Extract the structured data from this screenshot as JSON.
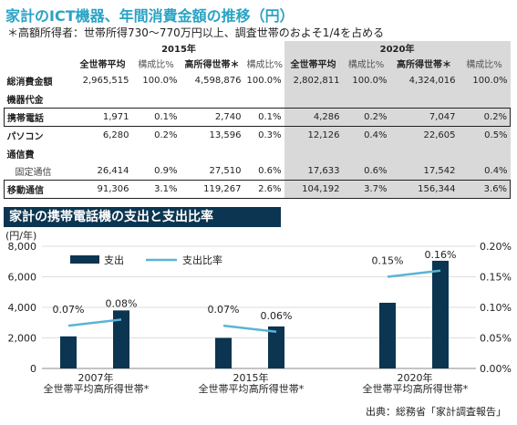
{
  "title": "家計のICT機器、年間消費金額の推移（円）",
  "note": "＊高額所得者：世帯所得730〜770万円以上、調査世帯のおよそ1/4を占める",
  "table": {
    "years": [
      "2015年",
      "2020年"
    ],
    "col_avg": "全世帯平均",
    "col_high": "高所得世帯＊",
    "col_ratio": "構成比%",
    "rows": [
      {
        "label": "総消費金額",
        "values": [
          "2,965,515",
          "100.0%",
          "4,598,876",
          "100.0%",
          "2,802,811",
          "100.0%",
          "4,324,016",
          "100.0%"
        ]
      },
      {
        "label": "機器代金"
      },
      {
        "label": "携帯電話",
        "values": [
          "1,971",
          "0.1%",
          "2,740",
          "0.1%",
          "4,286",
          "0.2%",
          "7,047",
          "0.2%"
        ]
      },
      {
        "label": "パソコン",
        "values": [
          "6,280",
          "0.2%",
          "13,596",
          "0.3%",
          "12,126",
          "0.4%",
          "22,605",
          "0.5%"
        ]
      },
      {
        "label": "通信費"
      },
      {
        "label": "固定通信",
        "values": [
          "26,414",
          "0.9%",
          "27,510",
          "0.6%",
          "17,633",
          "0.6%",
          "17,542",
          "0.4%"
        ]
      },
      {
        "label": "移動通信",
        "values": [
          "91,306",
          "3.1%",
          "119,267",
          "2.6%",
          "104,192",
          "3.7%",
          "156,344",
          "3.6%"
        ]
      }
    ]
  },
  "chart_title": "家計の携帯電話機の支出と支出比率",
  "source": "出典：総務省「家計調査報告」",
  "colors": {
    "bar": "#0b3550",
    "line": "#5ab4d6",
    "title": "#2aa3c5"
  },
  "chart_data": {
    "type": "bar",
    "unit_label": "(円/年)",
    "legend_bar": "支出",
    "legend_line": "支出比率",
    "legend_position": "top-left",
    "groups": [
      "2007年",
      "2015年",
      "2020年"
    ],
    "categories": [
      "全世帯平均",
      "高所得世帯*"
    ],
    "bars": [
      [
        2100,
        3800
      ],
      [
        2000,
        2750
      ],
      [
        4300,
        7050
      ]
    ],
    "ratios": [
      [
        0.0007,
        0.0008
      ],
      [
        0.0007,
        0.0006
      ],
      [
        0.0015,
        0.0016
      ]
    ],
    "ratio_labels": [
      [
        "0.07%",
        "0.08%"
      ],
      [
        "0.07%",
        "0.06%"
      ],
      [
        "0.15%",
        "0.16%"
      ]
    ],
    "ylim": [
      0,
      8000
    ],
    "yticks": [
      "0",
      "2,000",
      "4,000",
      "6,000",
      "8,000"
    ],
    "y2lim": [
      0,
      0.002
    ],
    "y2ticks": [
      "0.00%",
      "0.05%",
      "0.10%",
      "0.15%",
      "0.20%"
    ]
  }
}
